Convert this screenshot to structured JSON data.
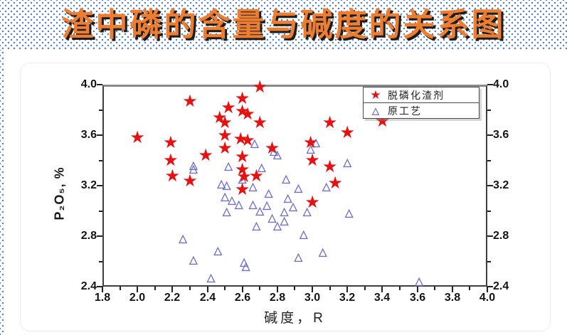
{
  "title": {
    "text": "渣中磷的含量与碱度的关系图",
    "color": "#ED7D31",
    "shadow_color": "#1c1c1c",
    "band_dot_color": "#4f82c2"
  },
  "legend": {
    "items": [
      {
        "marker": "star",
        "symbol": "★",
        "label": "脱磷化渣剂",
        "color": "#e81111"
      },
      {
        "marker": "triangle",
        "symbol": "△",
        "label": "原工艺",
        "color": "#7070c6"
      }
    ]
  },
  "chart_data": {
    "type": "scatter",
    "title": "",
    "xlabel": "碱度，R",
    "ylabel": "P₂O₅, %",
    "xlim": [
      1.8,
      4.0
    ],
    "ylim": [
      2.4,
      4.0
    ],
    "x_minor_step": 0.1,
    "x_major_step": 0.2,
    "y_minor_step": 0.2,
    "y_major_step": 0.4,
    "x_tick_labels": [
      "1.8",
      "2.0",
      "2.2",
      "2.4",
      "2.6",
      "2.8",
      "3.0",
      "3.2",
      "3.4",
      "3.6",
      "3.8",
      "4.0"
    ],
    "y_tick_labels": [
      "2.4",
      "2.8",
      "3.2",
      "3.6",
      "4.0"
    ],
    "y_tick_labels_right": [
      "2.4",
      "2.8",
      "3.2",
      "3.6",
      "4.0"
    ],
    "grid": false,
    "legend_position": "top-right",
    "series": [
      {
        "name": "脱磷化渣剂",
        "marker": "star",
        "color": "#e81111",
        "points": [
          [
            2.0,
            3.57
          ],
          [
            2.19,
            3.53
          ],
          [
            2.19,
            3.39
          ],
          [
            2.2,
            3.27
          ],
          [
            2.3,
            3.86
          ],
          [
            2.3,
            3.23
          ],
          [
            2.39,
            3.43
          ],
          [
            2.47,
            3.73
          ],
          [
            2.5,
            3.69
          ],
          [
            2.5,
            3.59
          ],
          [
            2.5,
            3.49
          ],
          [
            2.52,
            3.81
          ],
          [
            2.59,
            3.56
          ],
          [
            2.6,
            3.88
          ],
          [
            2.6,
            3.78
          ],
          [
            2.63,
            3.76
          ],
          [
            2.63,
            3.55
          ],
          [
            2.6,
            3.42
          ],
          [
            2.6,
            3.32
          ],
          [
            2.61,
            3.26
          ],
          [
            2.6,
            3.16
          ],
          [
            2.68,
            3.27
          ],
          [
            2.7,
            3.97
          ],
          [
            2.7,
            3.69
          ],
          [
            2.77,
            3.49
          ],
          [
            2.99,
            3.53
          ],
          [
            3.0,
            3.39
          ],
          [
            3.0,
            3.06
          ],
          [
            3.1,
            3.69
          ],
          [
            3.1,
            3.34
          ],
          [
            3.13,
            3.21
          ],
          [
            3.2,
            3.61
          ],
          [
            3.4,
            3.7
          ]
        ]
      },
      {
        "name": "原工艺",
        "marker": "triangle",
        "color": "#7070c6",
        "points": [
          [
            2.26,
            2.78
          ],
          [
            2.32,
            3.36
          ],
          [
            2.32,
            3.33
          ],
          [
            2.32,
            2.61
          ],
          [
            2.42,
            2.47
          ],
          [
            2.46,
            2.68
          ],
          [
            2.48,
            3.21
          ],
          [
            2.51,
            3.2
          ],
          [
            2.5,
            3.11
          ],
          [
            2.51,
            2.99
          ],
          [
            2.52,
            3.35
          ],
          [
            2.54,
            3.08
          ],
          [
            2.58,
            3.05
          ],
          [
            2.6,
            3.25
          ],
          [
            2.61,
            2.59
          ],
          [
            2.62,
            2.56
          ],
          [
            2.66,
            3.19
          ],
          [
            2.66,
            3.05
          ],
          [
            2.67,
            3.53
          ],
          [
            2.68,
            2.88
          ],
          [
            2.7,
            3.0
          ],
          [
            2.71,
            3.34
          ],
          [
            2.74,
            3.04
          ],
          [
            2.75,
            3.14
          ],
          [
            2.77,
            2.94
          ],
          [
            2.78,
            3.47
          ],
          [
            2.8,
            3.44
          ],
          [
            2.8,
            2.88
          ],
          [
            2.84,
            2.99
          ],
          [
            2.84,
            2.92
          ],
          [
            2.85,
            3.25
          ],
          [
            2.86,
            3.1
          ],
          [
            2.89,
            3.03
          ],
          [
            2.92,
            3.18
          ],
          [
            2.92,
            2.63
          ],
          [
            2.95,
            2.81
          ],
          [
            2.97,
            2.99
          ],
          [
            2.99,
            3.49
          ],
          [
            3.02,
            3.54
          ],
          [
            3.06,
            2.67
          ],
          [
            3.08,
            3.19
          ],
          [
            3.2,
            3.38
          ],
          [
            3.21,
            2.98
          ],
          [
            3.61,
            2.44
          ]
        ]
      }
    ]
  }
}
